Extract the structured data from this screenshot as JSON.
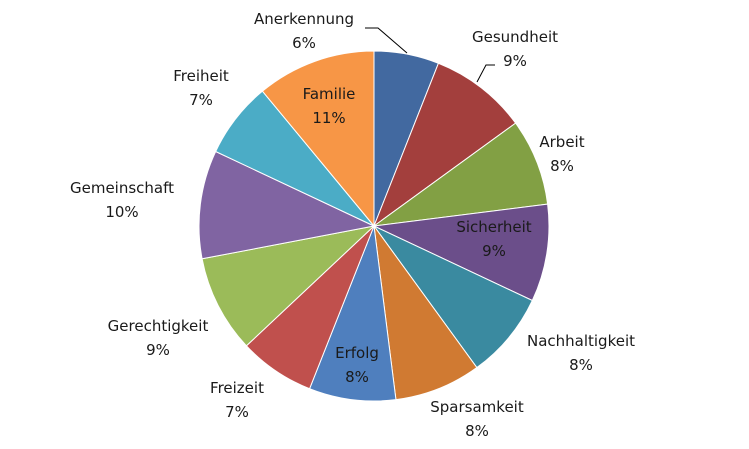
{
  "chart_data": {
    "type": "pie",
    "title": "",
    "slices": [
      {
        "label": "Anerkennung",
        "value": 6,
        "value_label": "6%",
        "color": "#4269A0",
        "label_position": "outside",
        "leader_line": true
      },
      {
        "label": "Gesundheit",
        "value": 9,
        "value_label": "9%",
        "color": "#A33F3D",
        "label_position": "outside",
        "leader_line": true
      },
      {
        "label": "Arbeit",
        "value": 8,
        "value_label": "8%",
        "color": "#82A044",
        "label_position": "outside"
      },
      {
        "label": "Sicherheit",
        "value": 9,
        "value_label": "9%",
        "color": "#6B4E8A",
        "label_position": "inside"
      },
      {
        "label": "Nachhaltigkeit",
        "value": 8,
        "value_label": "8%",
        "color": "#3A8AA0",
        "label_position": "outside"
      },
      {
        "label": "Sparsamkeit",
        "value": 8,
        "value_label": "8%",
        "color": "#D07A32",
        "label_position": "outside"
      },
      {
        "label": "Erfolg",
        "value": 8,
        "value_label": "8%",
        "color": "#4F7FBE",
        "label_position": "inside"
      },
      {
        "label": "Freizeit",
        "value": 7,
        "value_label": "7%",
        "color": "#C0504D",
        "label_position": "outside"
      },
      {
        "label": "Gerechtigkeit",
        "value": 9,
        "value_label": "9%",
        "color": "#9BBB59",
        "label_position": "outside"
      },
      {
        "label": "Gemeinschaft",
        "value": 10,
        "value_label": "10%",
        "color": "#8064A2",
        "label_position": "outside"
      },
      {
        "label": "Freiheit",
        "value": 7,
        "value_label": "7%",
        "color": "#4BACC6",
        "label_position": "outside"
      },
      {
        "label": "Familie",
        "value": 11,
        "value_label": "11%",
        "color": "#F79646",
        "label_position": "inside"
      }
    ],
    "start_angle_deg": 0,
    "direction": "clockwise",
    "legend": "none",
    "border_color": "#ffffff"
  }
}
